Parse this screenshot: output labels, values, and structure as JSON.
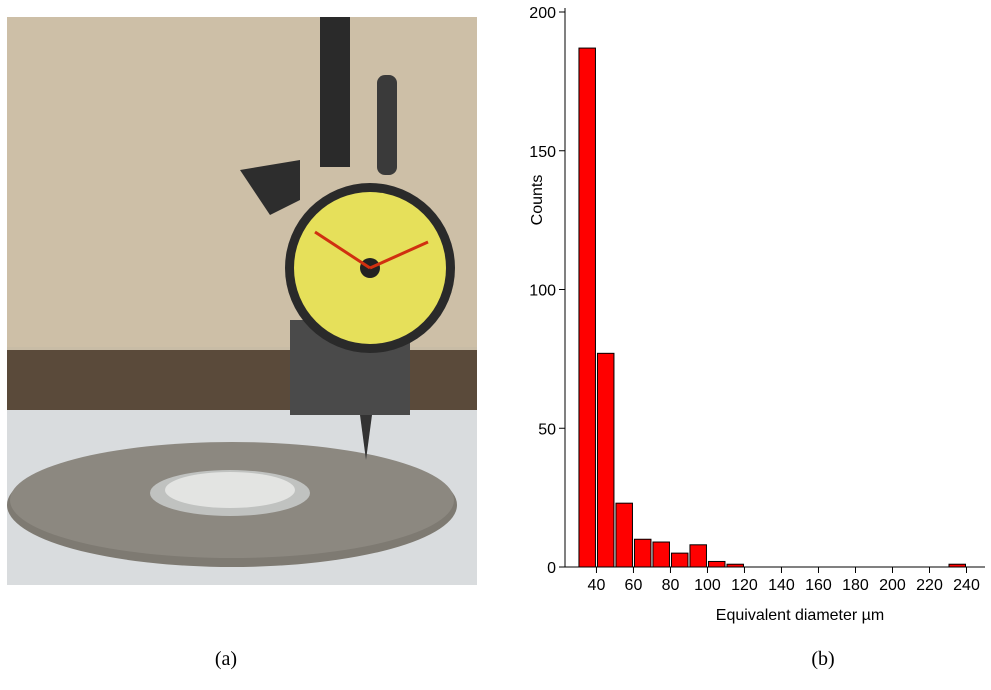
{
  "chart_data": {
    "type": "histogram",
    "xlabel": "Equivalent diameter µm",
    "ylabel": "Counts",
    "bins": [
      30,
      40,
      50,
      60,
      70,
      80,
      90,
      100,
      110,
      120,
      130,
      140,
      150,
      160,
      170,
      180,
      190,
      200,
      210,
      220,
      230,
      240
    ],
    "values": [
      187,
      77,
      23,
      10,
      9,
      5,
      8,
      2,
      1,
      0,
      0,
      0,
      0,
      0,
      0,
      0,
      0,
      0,
      0,
      0,
      1
    ],
    "color": "#ff0000",
    "xlim": [
      23,
      250
    ],
    "xticks": [
      40,
      60,
      80,
      100,
      120,
      140,
      160,
      180,
      200,
      220,
      240
    ],
    "ylim": [
      0,
      200
    ],
    "yticks": [
      0,
      50,
      100,
      150,
      200
    ]
  },
  "captions": [
    "(a)",
    "(b)"
  ]
}
